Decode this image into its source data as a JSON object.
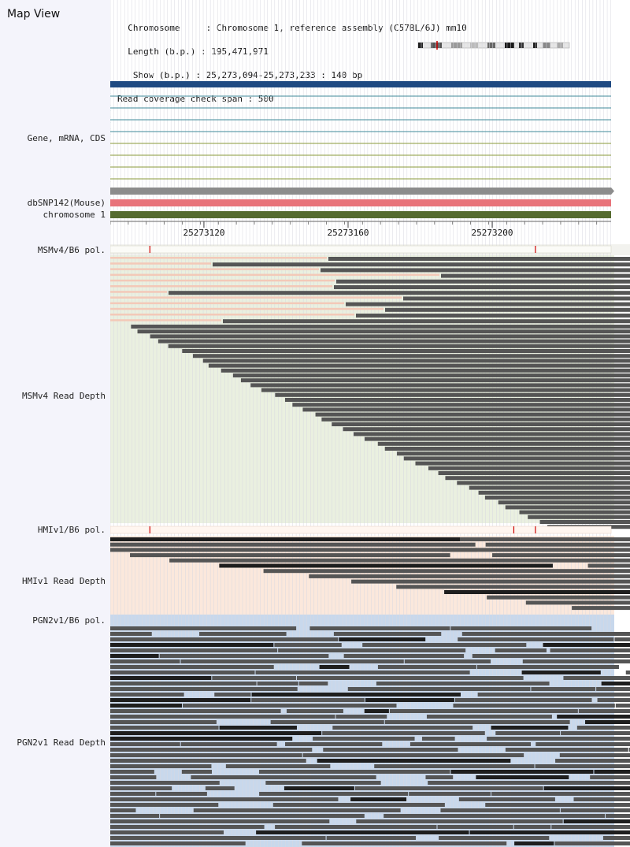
{
  "panel": {
    "title": "Map View",
    "info_lines": [
      "  Chromosome     : Chromosome 1, reference assembly (C57BL/6J) mm10",
      "  Length (b.p.) : 195,471,971",
      "   Show (b.p.) : 25,273,094-25,273,233 : 140 bp",
      "Read coverage check span : 500"
    ]
  },
  "tracks": {
    "gene_label": "Gene, mRNA, CDS",
    "snp_label": "dbSNP142(Mouse)",
    "chrom_label": "chromosome 1",
    "msm_pol_label": "MSMv4/B6 pol.",
    "msm_depth_label": "MSMv4 Read Depth",
    "hmi_pol_label": "HMIv1/B6 pol.",
    "hmi_depth_label": "HMIv1 Read Depth",
    "pgn_pol_label": "PGN2v1/B6 pol.",
    "pgn_depth_label": "PGN2v1 Read Depth"
  },
  "ruler": {
    "start": 25273094,
    "end": 25273233,
    "major_ticks": [
      25273120,
      25273160,
      25273200
    ]
  },
  "variants": {
    "msm": [
      25273105,
      25273212
    ],
    "hmi": [
      25273105,
      25273206,
      25273212
    ]
  },
  "colors": {
    "gene_main": "#1f4a82",
    "transcript_teal": "#3f8a9a",
    "transcript_olive": "#8a9a3a",
    "snp": "#e8737a",
    "chrom": "#556b2f",
    "grey_feature": "#8c8c8c",
    "read": "#555555",
    "read_dark": "#1e1e1e",
    "msm_bg": "#eaf0e0",
    "hmi_bg": "#fbe8dc",
    "pgn_bg": "#c8d8ec",
    "variant": "#cc0000"
  }
}
